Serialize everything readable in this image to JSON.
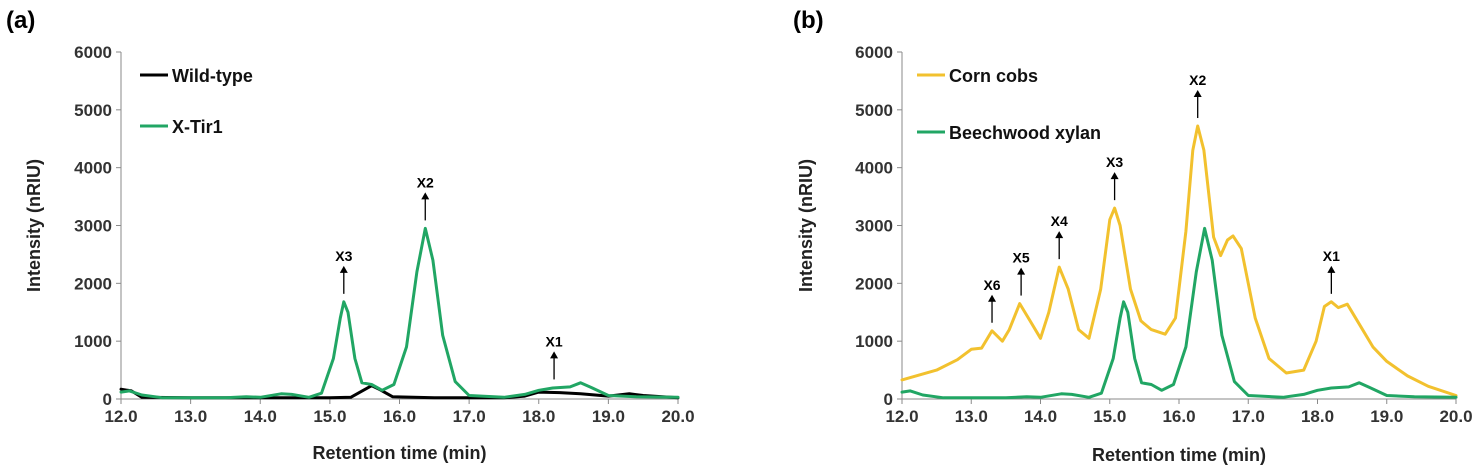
{
  "chart_data": [
    {
      "type": "line",
      "panel_label": "(a)",
      "xlabel": "Retention time (min)",
      "ylabel": "Intensity (nRIU)",
      "xlim": [
        12.0,
        20.0
      ],
      "ylim": [
        0,
        6000
      ],
      "x_ticks": [
        "12.0",
        "13.0",
        "14.0",
        "15.0",
        "16.0",
        "17.0",
        "18.0",
        "19.0",
        "20.0"
      ],
      "y_ticks": [
        "0",
        "1000",
        "2000",
        "3000",
        "4000",
        "5000",
        "6000"
      ],
      "legend_position": "top-left",
      "series": [
        {
          "name": "Wild-type",
          "color": "#000000",
          "points": [
            [
              12.0,
              170
            ],
            [
              12.15,
              140
            ],
            [
              12.3,
              30
            ],
            [
              13.0,
              20
            ],
            [
              14.0,
              20
            ],
            [
              15.0,
              20
            ],
            [
              15.3,
              30
            ],
            [
              15.48,
              150
            ],
            [
              15.6,
              230
            ],
            [
              15.72,
              160
            ],
            [
              15.9,
              40
            ],
            [
              16.5,
              20
            ],
            [
              17.5,
              20
            ],
            [
              17.8,
              50
            ],
            [
              18.0,
              120
            ],
            [
              18.3,
              110
            ],
            [
              18.6,
              90
            ],
            [
              19.0,
              50
            ],
            [
              19.3,
              90
            ],
            [
              19.5,
              60
            ],
            [
              20.0,
              20
            ]
          ]
        },
        {
          "name": "X-Tir1",
          "color": "#21A664",
          "points": [
            [
              12.0,
              120
            ],
            [
              12.12,
              140
            ],
            [
              12.3,
              70
            ],
            [
              12.6,
              20
            ],
            [
              13.5,
              20
            ],
            [
              13.8,
              40
            ],
            [
              14.0,
              30
            ],
            [
              14.3,
              90
            ],
            [
              14.45,
              80
            ],
            [
              14.7,
              30
            ],
            [
              14.88,
              100
            ],
            [
              15.05,
              700
            ],
            [
              15.15,
              1400
            ],
            [
              15.2,
              1680
            ],
            [
              15.26,
              1500
            ],
            [
              15.36,
              700
            ],
            [
              15.46,
              280
            ],
            [
              15.6,
              250
            ],
            [
              15.75,
              150
            ],
            [
              15.92,
              250
            ],
            [
              16.1,
              900
            ],
            [
              16.25,
              2200
            ],
            [
              16.37,
              2950
            ],
            [
              16.48,
              2400
            ],
            [
              16.62,
              1100
            ],
            [
              16.8,
              300
            ],
            [
              17.0,
              60
            ],
            [
              17.5,
              30
            ],
            [
              17.8,
              80
            ],
            [
              18.0,
              150
            ],
            [
              18.2,
              190
            ],
            [
              18.45,
              210
            ],
            [
              18.6,
              280
            ],
            [
              18.75,
              200
            ],
            [
              19.0,
              60
            ],
            [
              19.4,
              40
            ],
            [
              20.0,
              30
            ]
          ]
        }
      ],
      "annotations": [
        {
          "text": "X3",
          "x": 15.2,
          "y": 1680
        },
        {
          "text": "X2",
          "x": 16.37,
          "y": 2950
        },
        {
          "text": "X1",
          "x": 18.22,
          "y": 200
        }
      ]
    },
    {
      "type": "line",
      "panel_label": "(b)",
      "xlabel": "Retention time (min)",
      "ylabel": "Intensity (nRIU)",
      "xlim": [
        12.0,
        20.0
      ],
      "ylim": [
        0,
        6000
      ],
      "x_ticks": [
        "12.0",
        "13.0",
        "14.0",
        "15.0",
        "16.0",
        "17.0",
        "18.0",
        "19.0",
        "20.0"
      ],
      "y_ticks": [
        "0",
        "1000",
        "2000",
        "3000",
        "4000",
        "5000",
        "6000"
      ],
      "legend_position": "top-left",
      "series": [
        {
          "name": "Corn cobs",
          "color": "#F2C12E",
          "points": [
            [
              12.0,
              330
            ],
            [
              12.5,
              500
            ],
            [
              12.8,
              680
            ],
            [
              13.0,
              860
            ],
            [
              13.15,
              880
            ],
            [
              13.3,
              1180
            ],
            [
              13.45,
              1000
            ],
            [
              13.55,
              1200
            ],
            [
              13.7,
              1650
            ],
            [
              13.85,
              1350
            ],
            [
              14.0,
              1050
            ],
            [
              14.12,
              1500
            ],
            [
              14.27,
              2280
            ],
            [
              14.4,
              1900
            ],
            [
              14.55,
              1200
            ],
            [
              14.7,
              1050
            ],
            [
              14.87,
              1900
            ],
            [
              15.0,
              3100
            ],
            [
              15.07,
              3300
            ],
            [
              15.15,
              3000
            ],
            [
              15.3,
              1900
            ],
            [
              15.45,
              1350
            ],
            [
              15.6,
              1200
            ],
            [
              15.8,
              1120
            ],
            [
              15.95,
              1400
            ],
            [
              16.1,
              2900
            ],
            [
              16.2,
              4300
            ],
            [
              16.27,
              4720
            ],
            [
              16.36,
              4300
            ],
            [
              16.5,
              2800
            ],
            [
              16.6,
              2480
            ],
            [
              16.7,
              2750
            ],
            [
              16.78,
              2820
            ],
            [
              16.9,
              2600
            ],
            [
              17.1,
              1400
            ],
            [
              17.3,
              700
            ],
            [
              17.55,
              450
            ],
            [
              17.8,
              500
            ],
            [
              17.98,
              1000
            ],
            [
              18.1,
              1600
            ],
            [
              18.2,
              1680
            ],
            [
              18.3,
              1580
            ],
            [
              18.43,
              1640
            ],
            [
              18.6,
              1300
            ],
            [
              18.8,
              900
            ],
            [
              19.0,
              650
            ],
            [
              19.3,
              400
            ],
            [
              19.6,
              220
            ],
            [
              20.0,
              60
            ]
          ]
        },
        {
          "name": "Beechwood xylan",
          "color": "#21A664",
          "points": [
            [
              12.0,
              120
            ],
            [
              12.12,
              140
            ],
            [
              12.3,
              70
            ],
            [
              12.6,
              20
            ],
            [
              13.5,
              20
            ],
            [
              13.8,
              40
            ],
            [
              14.0,
              30
            ],
            [
              14.3,
              90
            ],
            [
              14.45,
              80
            ],
            [
              14.7,
              30
            ],
            [
              14.88,
              100
            ],
            [
              15.05,
              700
            ],
            [
              15.15,
              1400
            ],
            [
              15.2,
              1680
            ],
            [
              15.26,
              1500
            ],
            [
              15.36,
              700
            ],
            [
              15.46,
              280
            ],
            [
              15.6,
              250
            ],
            [
              15.75,
              150
            ],
            [
              15.92,
              250
            ],
            [
              16.1,
              900
            ],
            [
              16.25,
              2200
            ],
            [
              16.37,
              2950
            ],
            [
              16.48,
              2400
            ],
            [
              16.62,
              1100
            ],
            [
              16.8,
              300
            ],
            [
              17.0,
              60
            ],
            [
              17.5,
              30
            ],
            [
              17.8,
              80
            ],
            [
              18.0,
              150
            ],
            [
              18.2,
              190
            ],
            [
              18.45,
              210
            ],
            [
              18.6,
              280
            ],
            [
              18.75,
              200
            ],
            [
              19.0,
              60
            ],
            [
              19.4,
              40
            ],
            [
              20.0,
              30
            ]
          ]
        }
      ],
      "annotations": [
        {
          "text": "X6",
          "x": 13.3,
          "y": 1180
        },
        {
          "text": "X5",
          "x": 13.72,
          "y": 1650
        },
        {
          "text": "X4",
          "x": 14.27,
          "y": 2280
        },
        {
          "text": "X3",
          "x": 15.07,
          "y": 3300
        },
        {
          "text": "X2",
          "x": 16.27,
          "y": 4720
        },
        {
          "text": "X1",
          "x": 18.2,
          "y": 1680
        }
      ]
    }
  ]
}
